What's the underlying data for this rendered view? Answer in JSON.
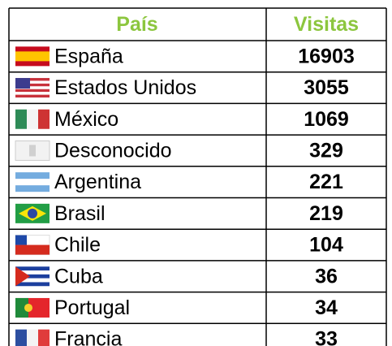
{
  "table": {
    "header": [
      "País",
      "Visitas"
    ],
    "rows": [
      [
        "España",
        16903
      ],
      [
        "Estados Unidos",
        3055
      ],
      [
        "México",
        1069
      ],
      [
        "Desconocido",
        329
      ],
      [
        "Argentina",
        221
      ],
      [
        "Brasil",
        219
      ],
      [
        "Chile",
        104
      ],
      [
        "Cuba",
        36
      ],
      [
        "Portugal",
        34
      ],
      [
        "Francia",
        33
      ]
    ]
  }
}
